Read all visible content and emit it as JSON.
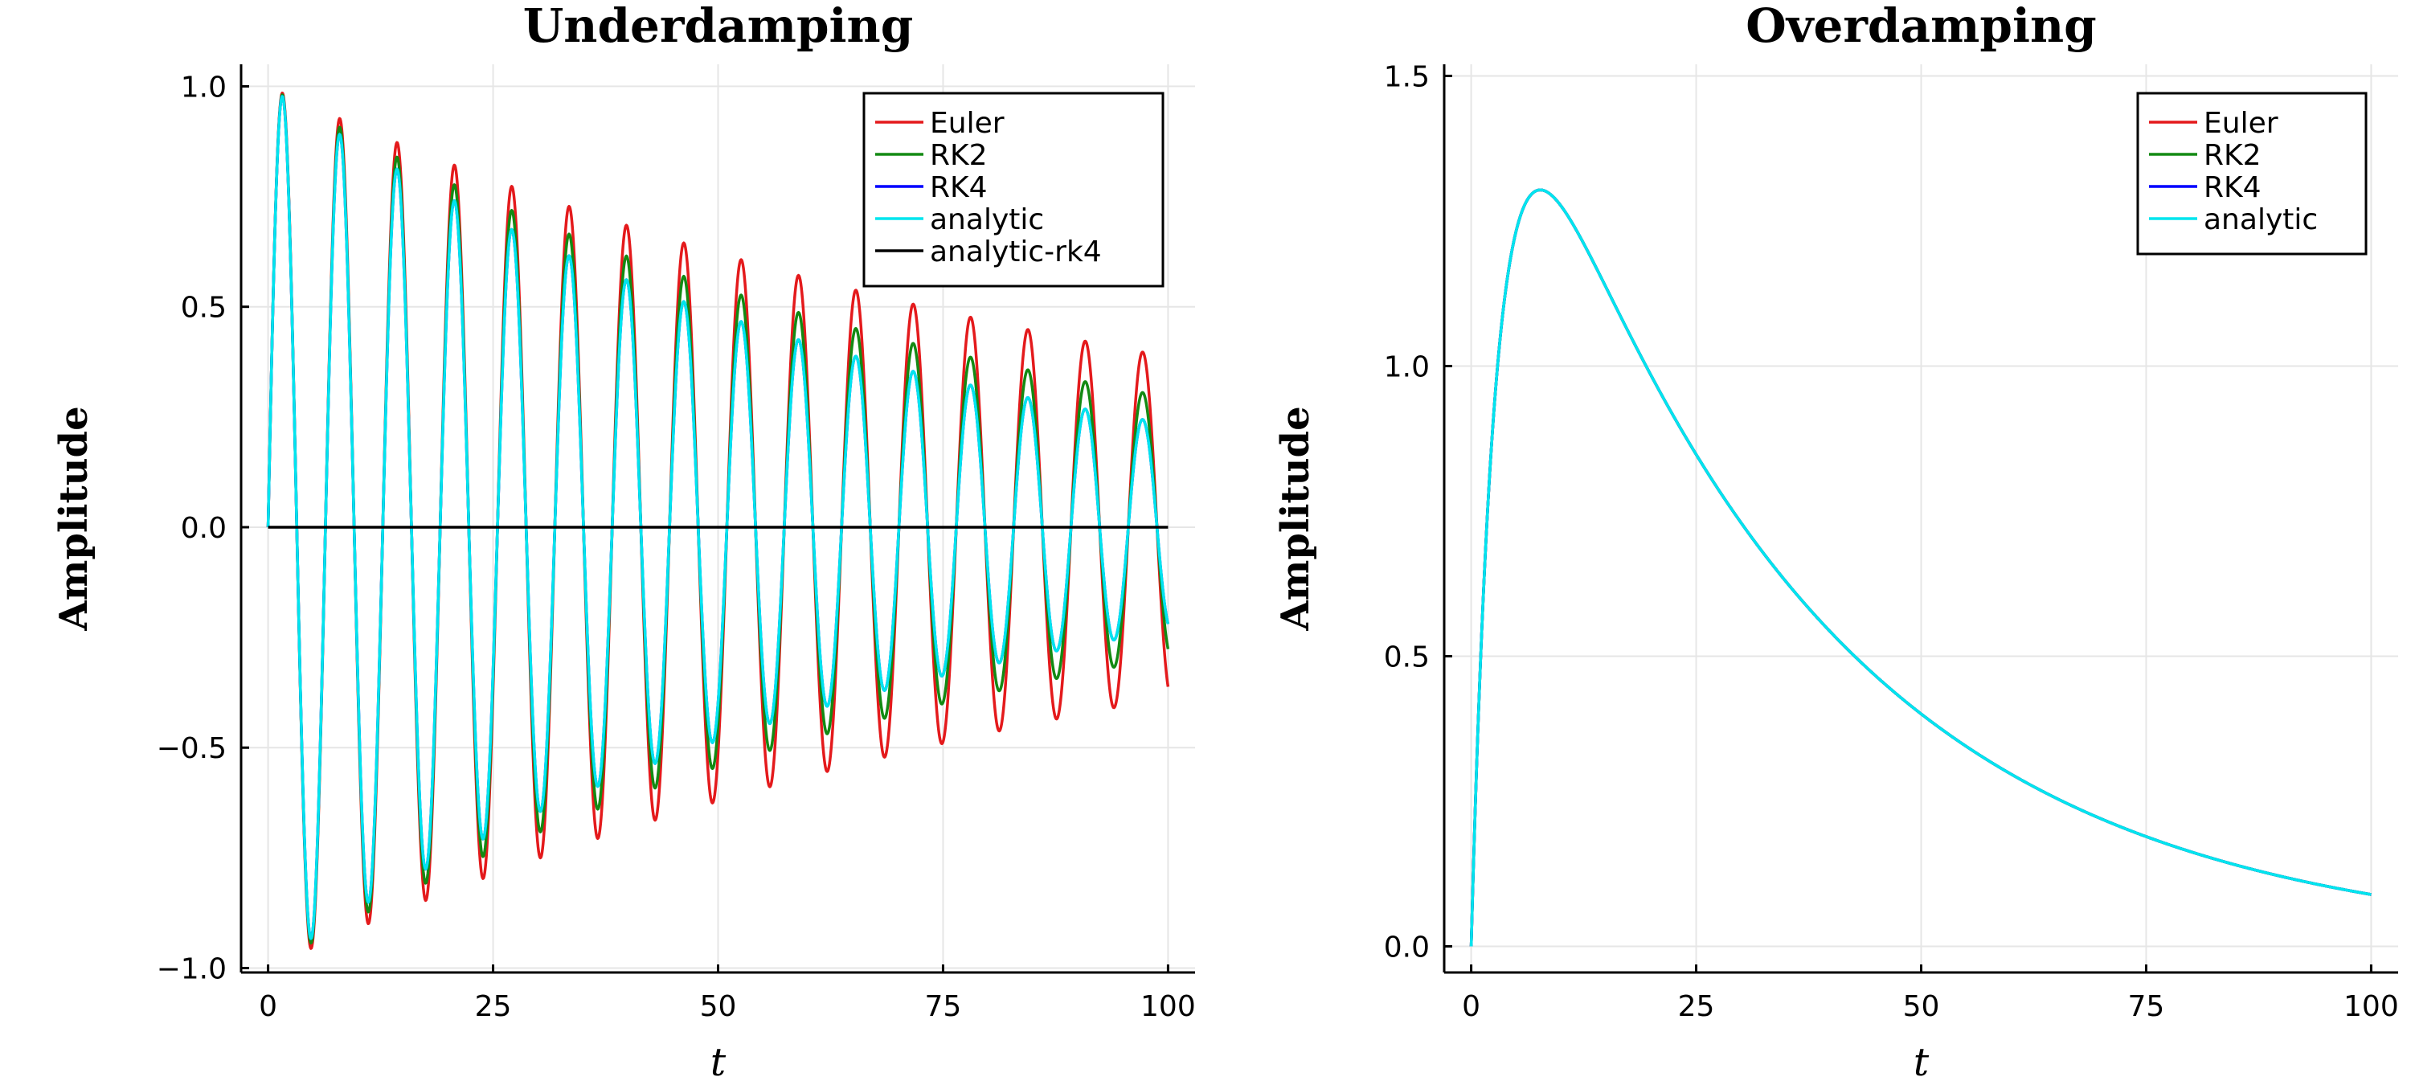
{
  "chart_data": [
    {
      "type": "line",
      "title": "Underdamping",
      "xlabel": "t",
      "ylabel": "Amplitude",
      "xlim": [
        -3,
        103
      ],
      "ylim": [
        -1.01,
        1.05
      ],
      "xticks": [
        0,
        25,
        50,
        75,
        100
      ],
      "xtick_labels": [
        "0",
        "25",
        "50",
        "75",
        "100"
      ],
      "yticks": [
        -1.0,
        -0.5,
        0.0,
        0.5,
        1.0
      ],
      "ytick_labels": [
        "−1.0",
        "−0.5",
        "0.0",
        "0.5",
        "1.0"
      ],
      "grid": true,
      "legend_position": "top-right",
      "colors": {
        "Euler": "#e41a1c",
        "RK2": "#138a13",
        "RK4": "#0000ff",
        "analytic": "#00e5ee",
        "analytic-rk4": "#000000"
      },
      "series": [
        {
          "name": "Euler",
          "model": "damped_sine",
          "params": {
            "amplitude": 1.0,
            "omega": 0.986,
            "decay": 0.0095
          },
          "x_range": [
            0,
            100
          ]
        },
        {
          "name": "RK2",
          "model": "damped_sine",
          "params": {
            "amplitude": 1.0,
            "omega": 0.986,
            "decay": 0.0122
          },
          "x_range": [
            0,
            100
          ]
        },
        {
          "name": "RK4",
          "model": "damped_sine",
          "params": {
            "amplitude": 1.0,
            "omega": 0.986,
            "decay": 0.0145
          },
          "x_range": [
            0,
            100
          ]
        },
        {
          "name": "analytic",
          "model": "damped_sine",
          "params": {
            "amplitude": 1.0,
            "omega": 0.986,
            "decay": 0.0145
          },
          "x_range": [
            0,
            100
          ]
        },
        {
          "name": "analytic-rk4",
          "model": "constant",
          "params": {
            "value": 0.0
          },
          "x_range": [
            0,
            100
          ]
        }
      ]
    },
    {
      "type": "line",
      "title": "Overdamping",
      "xlabel": "t",
      "ylabel": "Amplitude",
      "xlim": [
        -3,
        103
      ],
      "ylim": [
        -0.045,
        1.52
      ],
      "xticks": [
        0,
        25,
        50,
        75,
        100
      ],
      "xtick_labels": [
        "0",
        "25",
        "50",
        "75",
        "100"
      ],
      "yticks": [
        0.0,
        0.5,
        1.0,
        1.5
      ],
      "ytick_labels": [
        "0.0",
        "0.5",
        "1.0",
        "1.5"
      ],
      "grid": true,
      "legend_position": "top-right",
      "colors": {
        "Euler": "#e41a1c",
        "RK2": "#138a13",
        "RK4": "#0000ff",
        "analytic": "#00e5ee"
      },
      "series": [
        {
          "name": "Euler",
          "model": "overdamped",
          "params": {
            "coeff": 1.795,
            "slow_rate": 0.03,
            "fast_rate": 0.35
          },
          "x_range": [
            0,
            100
          ]
        },
        {
          "name": "RK2",
          "model": "overdamped",
          "params": {
            "coeff": 1.795,
            "slow_rate": 0.03,
            "fast_rate": 0.35
          },
          "x_range": [
            0,
            100
          ]
        },
        {
          "name": "RK4",
          "model": "overdamped",
          "params": {
            "coeff": 1.795,
            "slow_rate": 0.03,
            "fast_rate": 0.35
          },
          "x_range": [
            0,
            100
          ]
        },
        {
          "name": "analytic",
          "model": "overdamped",
          "params": {
            "coeff": 1.795,
            "slow_rate": 0.03,
            "fast_rate": 0.35
          },
          "x_range": [
            0,
            100
          ]
        }
      ]
    }
  ]
}
